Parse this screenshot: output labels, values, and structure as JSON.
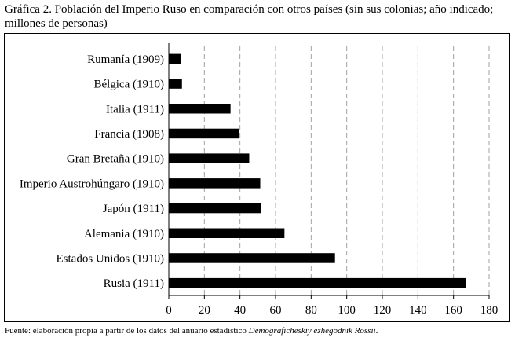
{
  "title": "Gráfica 2. Población del Imperio Ruso en comparación con otros países (sin sus colonias; año indicado; millones de personas)",
  "source": {
    "prefix": "Fuente: elaboración propia a partir de los datos del anuario estadístico ",
    "publication": "Demograficheskiy ezhegodnik Rossii",
    "suffix": "."
  },
  "chart_data": {
    "type": "bar",
    "orientation": "horizontal",
    "title": "Gráfica 2. Población del Imperio Ruso en comparación con otros países (sin sus colonias; año indicado; millones de personas)",
    "xlabel": "",
    "ylabel": "",
    "xlim": [
      0,
      180
    ],
    "xticks": [
      0,
      20,
      40,
      60,
      80,
      100,
      120,
      140,
      160,
      180
    ],
    "grid": "vertical dashed",
    "legend": "none",
    "bar_color": "#000000",
    "categories": [
      "Rumanía (1909)",
      "Bélgica (1910)",
      "Italia (1911)",
      "Francia (1908)",
      "Gran Bretaña (1910)",
      "Imperio Austrohúngaro (1910)",
      "Japón (1911)",
      "Alemania (1910)",
      "Estados Unidos (1910)",
      "Rusia (1911)"
    ],
    "values": [
      7,
      7.4,
      34.7,
      39.3,
      45.2,
      51.4,
      51.7,
      65,
      93.4,
      167
    ]
  }
}
